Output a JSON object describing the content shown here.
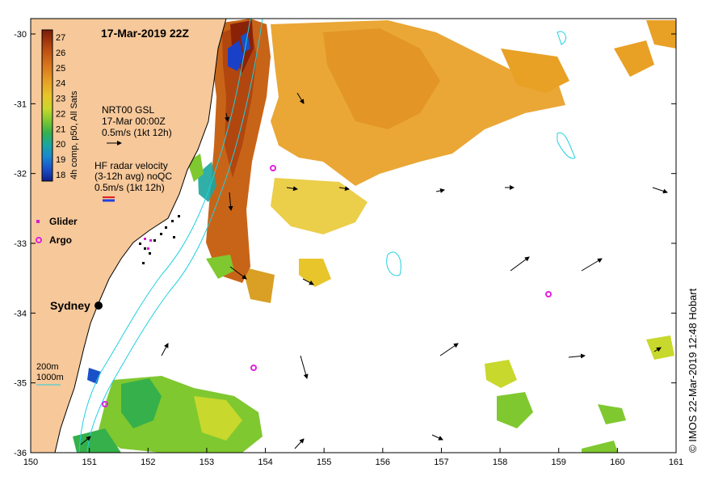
{
  "title": "17-Mar-2019 22Z",
  "colorbar": {
    "label": "4h comp, p50, All Sats",
    "ticks": [
      "27",
      "26",
      "25",
      "24",
      "23",
      "22",
      "21",
      "20",
      "19",
      "18"
    ],
    "colors": [
      "#7a1a08",
      "#b84a10",
      "#d9771c",
      "#e8a025",
      "#e8c52a",
      "#c8d82c",
      "#7fc830",
      "#36b04a",
      "#1aa6a0",
      "#1a86d0",
      "#1a50c8",
      "#10208a"
    ]
  },
  "legend_gsl": {
    "line1": "NRT00 GSL",
    "line2": "17-Mar 00:00Z",
    "line3": "0.5m/s (1kt 12h)"
  },
  "legend_radar": {
    "line1": "HF radar velocity",
    "line2": "(3-12h avg) noQC",
    "line3": "0.5m/s (1kt 12h)"
  },
  "markers": {
    "glider": "Glider",
    "argo": "Argo"
  },
  "city": "Sydney",
  "bathy": {
    "line1": "200m",
    "line2": "1000m"
  },
  "x_ticks": [
    "150",
    "151",
    "152",
    "153",
    "154",
    "155",
    "156",
    "157",
    "158",
    "159",
    "160",
    "161"
  ],
  "y_ticks": [
    "-30",
    "-31",
    "-32",
    "-33",
    "-34",
    "-35",
    "-36"
  ],
  "credit": "© IMOS 22-Mar-2019 12:48 Hobart",
  "colors": {
    "land": "#f6c89a",
    "ocean": "#ffffff",
    "argo": "#e020e0",
    "glider": "#d020d0",
    "bathy": "#20d0e0"
  }
}
